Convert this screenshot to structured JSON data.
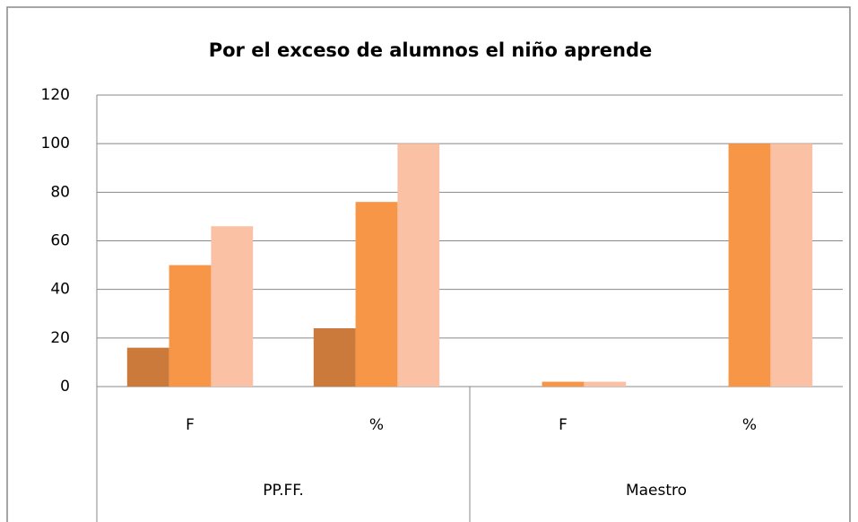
{
  "chart_data": {
    "type": "bar",
    "title": "Por el exceso de alumnos el niño aprende",
    "categories": [
      "F",
      "%",
      "F",
      "%"
    ],
    "groups": [
      "PP.FF.",
      "Maestro"
    ],
    "series": [
      {
        "color": "#cb7a3b",
        "values": [
          16,
          24,
          0,
          0
        ]
      },
      {
        "color": "#f79646",
        "values": [
          50,
          76,
          2,
          100
        ]
      },
      {
        "color": "#fac1a4",
        "values": [
          66,
          100,
          2,
          100
        ]
      }
    ],
    "ylim": [
      0,
      120
    ],
    "yticks": [
      0,
      20,
      40,
      60,
      80,
      100,
      120
    ],
    "grid": true
  }
}
